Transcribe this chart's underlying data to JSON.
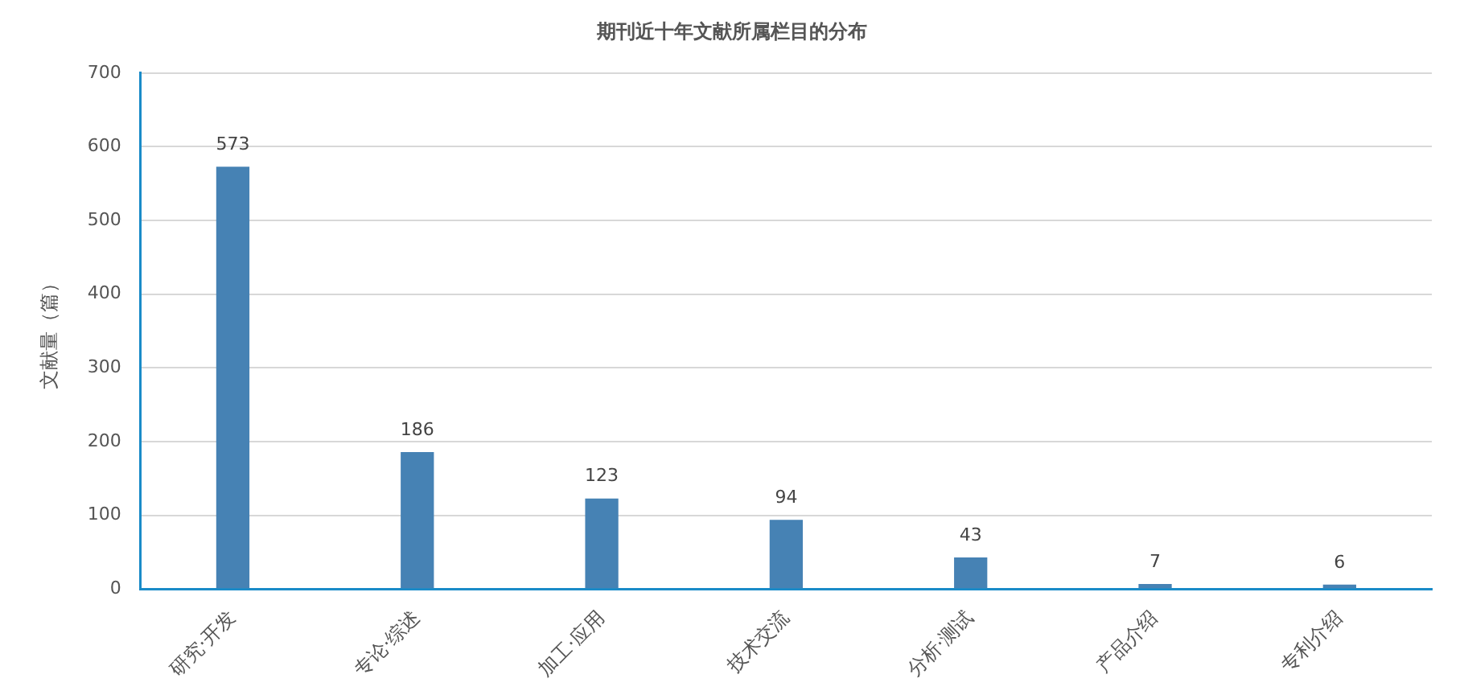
{
  "chart_data": {
    "type": "bar",
    "title": "期刊近十年文献所属栏目的分布",
    "ylabel": "文献量（篇）",
    "categories": [
      "研究·开发",
      "专论·综述",
      "加工·应用",
      "技术交流",
      "分析·测试",
      "产品介绍",
      "专利介绍"
    ],
    "values": [
      573,
      186,
      123,
      94,
      43,
      7,
      6
    ],
    "color": "#4682b4",
    "ylim": [
      0,
      700
    ],
    "yticks": [
      0,
      100,
      200,
      300,
      400,
      500,
      600,
      700
    ],
    "grid": "y",
    "data_labels": true
  }
}
